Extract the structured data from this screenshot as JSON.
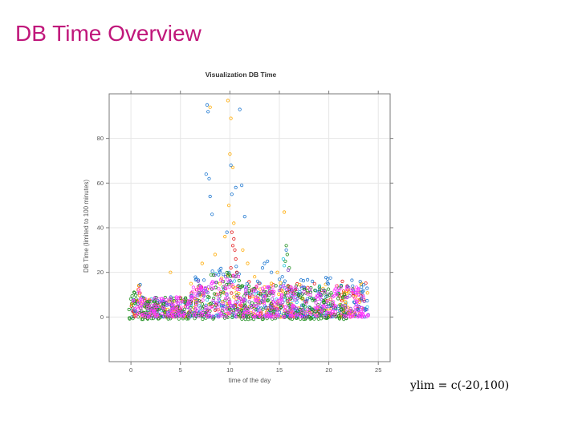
{
  "slide": {
    "title": "DB Time Overview",
    "caption": "ylim = c(-20,100)"
  },
  "chart_data": {
    "type": "scatter",
    "title": "Visualization DB Time",
    "xlabel": "time of the day",
    "ylabel": "DB Time (limited to 100 minutes)",
    "xlim": [
      -2.2,
      26.2
    ],
    "ylim": [
      -20,
      100
    ],
    "x_ticks": [
      0,
      5,
      10,
      15,
      20,
      25
    ],
    "y_ticks": [
      0,
      20,
      40,
      60,
      80
    ],
    "grid": true,
    "marker": "open-circle",
    "colors": {
      "frame": "#7a7a7a",
      "grid": "#e6e6e6",
      "title": "#333333",
      "tick_label": "#555555",
      "magenta": "#ff33ff",
      "green": "#1e8f1e",
      "blue": "#1f78d1",
      "orange": "#ffaa00",
      "red": "#e31a1c",
      "purple": "#8a3ccf",
      "cyan": "#23c4d9"
    },
    "point_groups": [
      {
        "color": "orange",
        "x": [
          8.0,
          9.8,
          10.1,
          10.0,
          10.3,
          9.9,
          10.4,
          15.5,
          4.0,
          7.2,
          11.3,
          14.8,
          9.5,
          8.5,
          11.8,
          6.5,
          12.5
        ],
        "y": [
          94,
          97,
          89,
          73,
          67,
          50,
          42,
          47,
          20,
          24,
          30,
          20,
          36,
          28,
          24,
          8,
          18
        ]
      },
      {
        "color": "blue",
        "x": [
          7.7,
          7.8,
          11.0,
          7.6,
          7.9,
          10.1,
          11.2,
          8.0,
          8.2,
          10.6,
          10.2,
          9.7,
          11.5,
          13.5,
          13.8,
          13.3,
          15.7,
          15.3,
          12.8,
          14.2
        ],
        "y": [
          95,
          92,
          93,
          64,
          62,
          68,
          59,
          54,
          46,
          58,
          55,
          38,
          45,
          24,
          25,
          22,
          30,
          18,
          16,
          20
        ]
      },
      {
        "color": "red",
        "x": [
          10.2,
          10.4,
          10.3,
          10.5,
          10.6,
          10.1,
          10.7
        ],
        "y": [
          38,
          35,
          32,
          30,
          26,
          22,
          20
        ]
      },
      {
        "color": "green",
        "x": [
          15.7,
          15.8,
          15.6,
          16.0
        ],
        "y": [
          32,
          28,
          25,
          22
        ]
      },
      {
        "color": "purple",
        "x": [
          6.8,
          10.5,
          15.9
        ],
        "y": [
          16,
          18,
          21
        ]
      },
      {
        "color": "cyan",
        "x": [
          15.4,
          15.5
        ],
        "y": [
          26,
          23
        ]
      }
    ],
    "bands": [
      {
        "color": "magenta",
        "x_range": [
          0.2,
          24.0
        ],
        "y_range": [
          0,
          14
        ],
        "count": 420
      },
      {
        "color": "green",
        "x_range": [
          -0.2,
          22.0
        ],
        "y_range": [
          -1,
          14
        ],
        "count": 380
      },
      {
        "color": "blue",
        "x_range": [
          0.0,
          24.0
        ],
        "y_range": [
          0,
          18
        ],
        "count": 260
      },
      {
        "color": "orange",
        "x_range": [
          0.0,
          24.0
        ],
        "y_range": [
          0,
          16
        ],
        "count": 200
      },
      {
        "color": "red",
        "x_range": [
          0.0,
          24.0
        ],
        "y_range": [
          0,
          16
        ],
        "count": 180
      },
      {
        "color": "purple",
        "x_range": [
          0.0,
          24.0
        ],
        "y_range": [
          0,
          14
        ],
        "count": 160
      },
      {
        "color": "cyan",
        "x_range": [
          0.0,
          24.0
        ],
        "y_range": [
          0,
          14
        ],
        "count": 100
      }
    ]
  }
}
